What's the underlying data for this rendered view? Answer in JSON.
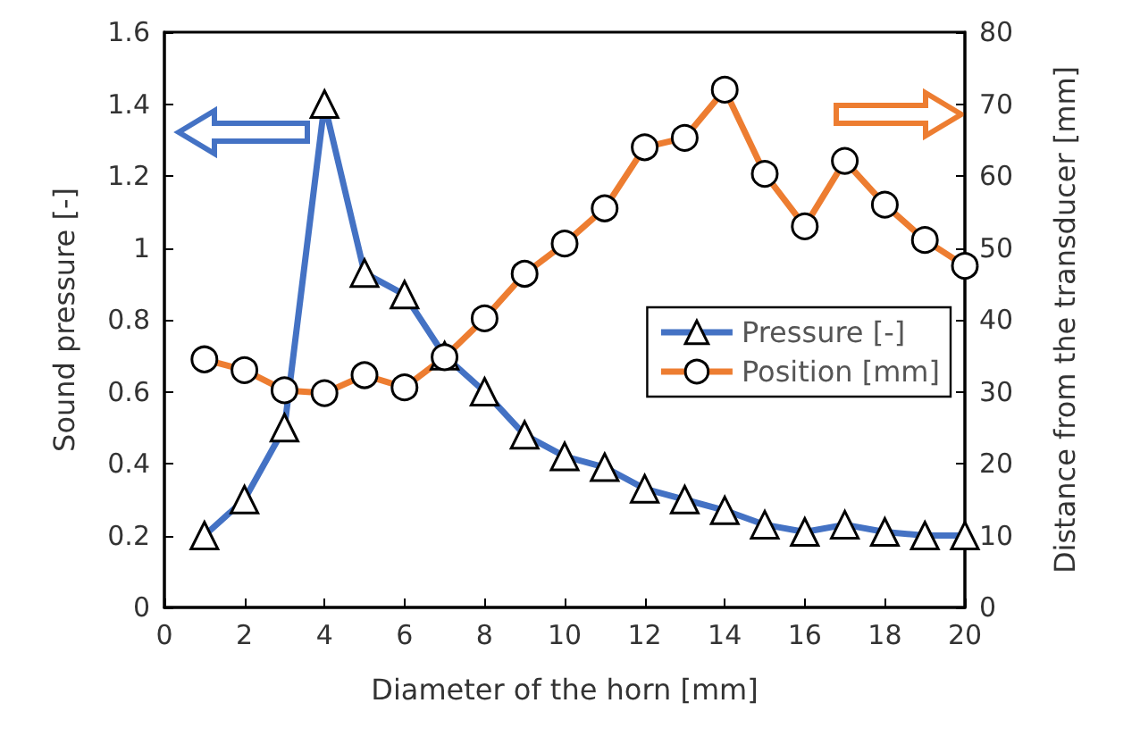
{
  "chart_data": {
    "type": "line",
    "xlabel": "Diameter of the horn [mm]",
    "ylabel": "Sound pressure [-]",
    "y2label": "Distance from the transducer [mm]",
    "x": [
      1,
      2,
      3,
      4,
      5,
      6,
      7,
      8,
      9,
      10,
      11,
      12,
      13,
      14,
      15,
      16,
      17,
      18,
      19,
      20
    ],
    "series": [
      {
        "name": "Pressure [-]",
        "color": "#4472c4",
        "marker": "triangle",
        "values": [
          0.2,
          0.3,
          0.5,
          1.4,
          0.93,
          0.87,
          0.7,
          0.6,
          0.48,
          0.42,
          0.39,
          0.33,
          0.3,
          0.27,
          0.23,
          0.21,
          0.23,
          0.21,
          0.2,
          0.2
        ]
      },
      {
        "name": "Position [mm]",
        "color": "#ed7d31",
        "marker": "circle",
        "axis": "y2",
        "values": [
          34.5,
          33,
          30.2,
          29.8,
          32.3,
          30.6,
          34.8,
          40.2,
          46.4,
          50.6,
          55.5,
          64,
          65.3,
          72,
          60.3,
          53,
          62.1,
          56,
          51.1,
          47.5
        ]
      }
    ],
    "xlim": [
      0,
      20
    ],
    "xticks": [
      0,
      2,
      4,
      6,
      8,
      10,
      12,
      14,
      16,
      18,
      20
    ],
    "ylim": [
      0,
      1.6
    ],
    "yticks": [
      0,
      0.2,
      0.4,
      0.6,
      0.8,
      1,
      1.2,
      1.4,
      1.6
    ],
    "y2lim": [
      0,
      80
    ],
    "y2ticks": [
      0,
      10,
      20,
      30,
      40,
      50,
      60,
      70,
      80
    ],
    "grid": false,
    "legend": "right",
    "line_style": "solid"
  }
}
